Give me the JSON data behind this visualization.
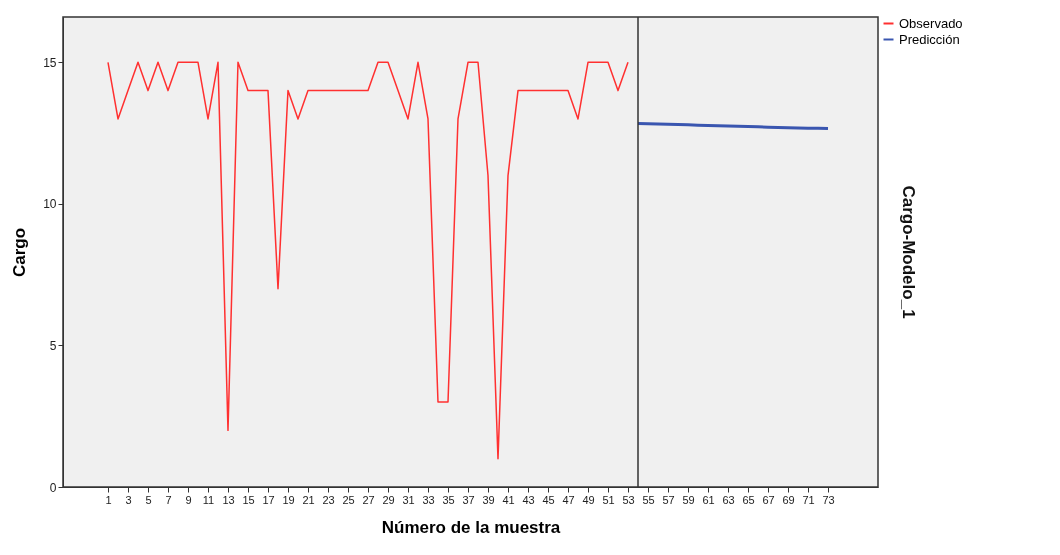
{
  "chart_data": {
    "type": "line",
    "xlabel": "Número de la muestra",
    "ylabel": "Cargo",
    "y2label": "Cargo-Modelo_1",
    "series": [
      {
        "name": "Observado",
        "color": "#ff3030",
        "x": [
          1,
          2,
          3,
          4,
          5,
          6,
          7,
          8,
          9,
          10,
          11,
          12,
          13,
          14,
          15,
          16,
          17,
          18,
          19,
          20,
          21,
          22,
          23,
          24,
          25,
          26,
          27,
          28,
          29,
          30,
          31,
          32,
          33,
          34,
          35,
          36,
          37,
          38,
          39,
          40,
          41,
          42,
          43,
          44,
          45,
          46,
          47,
          48,
          49,
          50,
          51,
          52,
          53
        ],
        "values": [
          15,
          13,
          14,
          15,
          14,
          15,
          14,
          15,
          15,
          15,
          13,
          15,
          2,
          15,
          14,
          14,
          14,
          7,
          14,
          13,
          14,
          14,
          14,
          14,
          14,
          14,
          14,
          15,
          15,
          14,
          13,
          15,
          13,
          3,
          3,
          13,
          15,
          15,
          11,
          1,
          11,
          14,
          14,
          14,
          14,
          14,
          14,
          13,
          15,
          15,
          15,
          14,
          15
        ]
      },
      {
        "name": "Predicción",
        "color": "#3a56b0",
        "x": [
          54,
          55,
          56,
          57,
          58,
          59,
          60,
          61,
          62,
          63,
          64,
          65,
          66,
          67,
          68,
          69,
          70,
          71,
          72,
          73
        ],
        "values": [
          12.84,
          12.83,
          12.82,
          12.81,
          12.8,
          12.79,
          12.78,
          12.77,
          12.76,
          12.75,
          12.74,
          12.73,
          12.72,
          12.71,
          12.7,
          12.69,
          12.68,
          12.67,
          12.67,
          12.66
        ]
      }
    ],
    "xlim": [
      -3.5,
      78
    ],
    "xticks": [
      1,
      3,
      5,
      7,
      9,
      11,
      13,
      15,
      17,
      19,
      21,
      23,
      25,
      27,
      29,
      31,
      33,
      35,
      37,
      39,
      41,
      43,
      45,
      47,
      49,
      51,
      53,
      55,
      57,
      59,
      61,
      63,
      65,
      67,
      69,
      71,
      73
    ],
    "ylim": [
      0,
      16.6
    ],
    "yticks": [
      0,
      5,
      10,
      15
    ],
    "ref_lines": [
      {
        "axis": "x",
        "value": 54,
        "color": "#333333"
      }
    ],
    "grid": false,
    "legend": "top right",
    "marker": "none",
    "line_style": "solid"
  }
}
